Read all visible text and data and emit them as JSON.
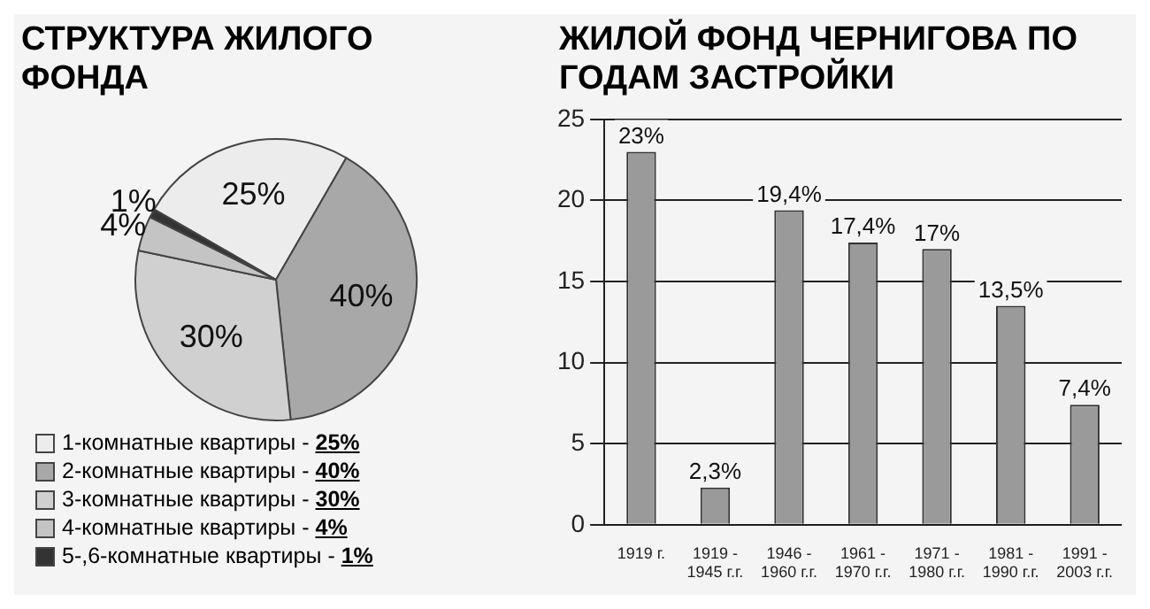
{
  "chart_data": [
    {
      "type": "pie",
      "title": "СТРУКТУРА ЖИЛОГО ФОНДА",
      "categories": [
        "1-комнатные квартиры - 25%",
        "2-комнатные квартиры - 40%",
        "3-комнатные квартиры - 30%",
        "4-комнатные квартиры - 4%",
        "5-,6-комнатные квартиры - 1%"
      ],
      "values": [
        25,
        40,
        30,
        4,
        1
      ],
      "value_labels": [
        "25%",
        "40%",
        "30%",
        "4%",
        "1%"
      ],
      "colors": [
        "#ececec",
        "#a8a8a8",
        "#d0d0d0",
        "#c4c4c4",
        "#333333"
      ],
      "legend": "bottom"
    },
    {
      "type": "bar",
      "title": "ЖИЛОЙ ФОНД ЧЕРНИГОВА ПО ГОДАМ ЗАСТРОЙКИ",
      "categories": [
        "1919 г.",
        "1919 - 1945 г.г.",
        "1946 - 1960 г.г.",
        "1961 - 1970 г.г.",
        "1971 - 1980 г.г.",
        "1981 - 1990 г.г.",
        "1991 - 2003 г.г."
      ],
      "values": [
        23,
        2.3,
        19.4,
        17.4,
        17,
        13.5,
        7.4
      ],
      "value_labels": [
        "23%",
        "2,3%",
        "19,4%",
        "17,4%",
        "17%",
        "13,5%",
        "7,4%"
      ],
      "color": "#9a9a9a",
      "ylim": [
        0,
        25
      ],
      "yticks": [
        0,
        5,
        10,
        15,
        20,
        25
      ],
      "grid": "y"
    }
  ]
}
